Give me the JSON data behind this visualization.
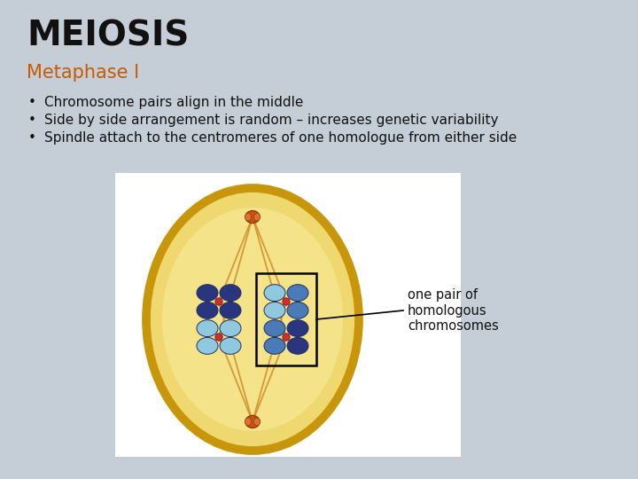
{
  "bg_color": "#c5cdd6",
  "title": "MEIOSIS",
  "title_color": "#111111",
  "title_fontsize": 28,
  "subtitle": "Metaphase I",
  "subtitle_color": "#c85a00",
  "subtitle_fontsize": 15,
  "bullets": [
    "Chromosome pairs align in the middle",
    "Side by side arrangement is random – increases genetic variability",
    "Spindle attach to the centromeres of one homologue from either side"
  ],
  "bullet_color": "#111111",
  "bullet_fontsize": 11,
  "annotation_text": "one pair of\nhomologous\nchromosomes",
  "annotation_fontsize": 10.5,
  "annotation_color": "#111111",
  "cell_outer_color": "#c8960a",
  "cell_inner_color": "#f0d870",
  "cell_inner_color2": "#f8eea0",
  "spindle_color": "#d09030",
  "centrosome_color": "#d05010",
  "dark_blue": "#2a3580",
  "mid_blue": "#4a7ab8",
  "light_blue": "#90c8e0",
  "centromere_color": "#cc3030"
}
